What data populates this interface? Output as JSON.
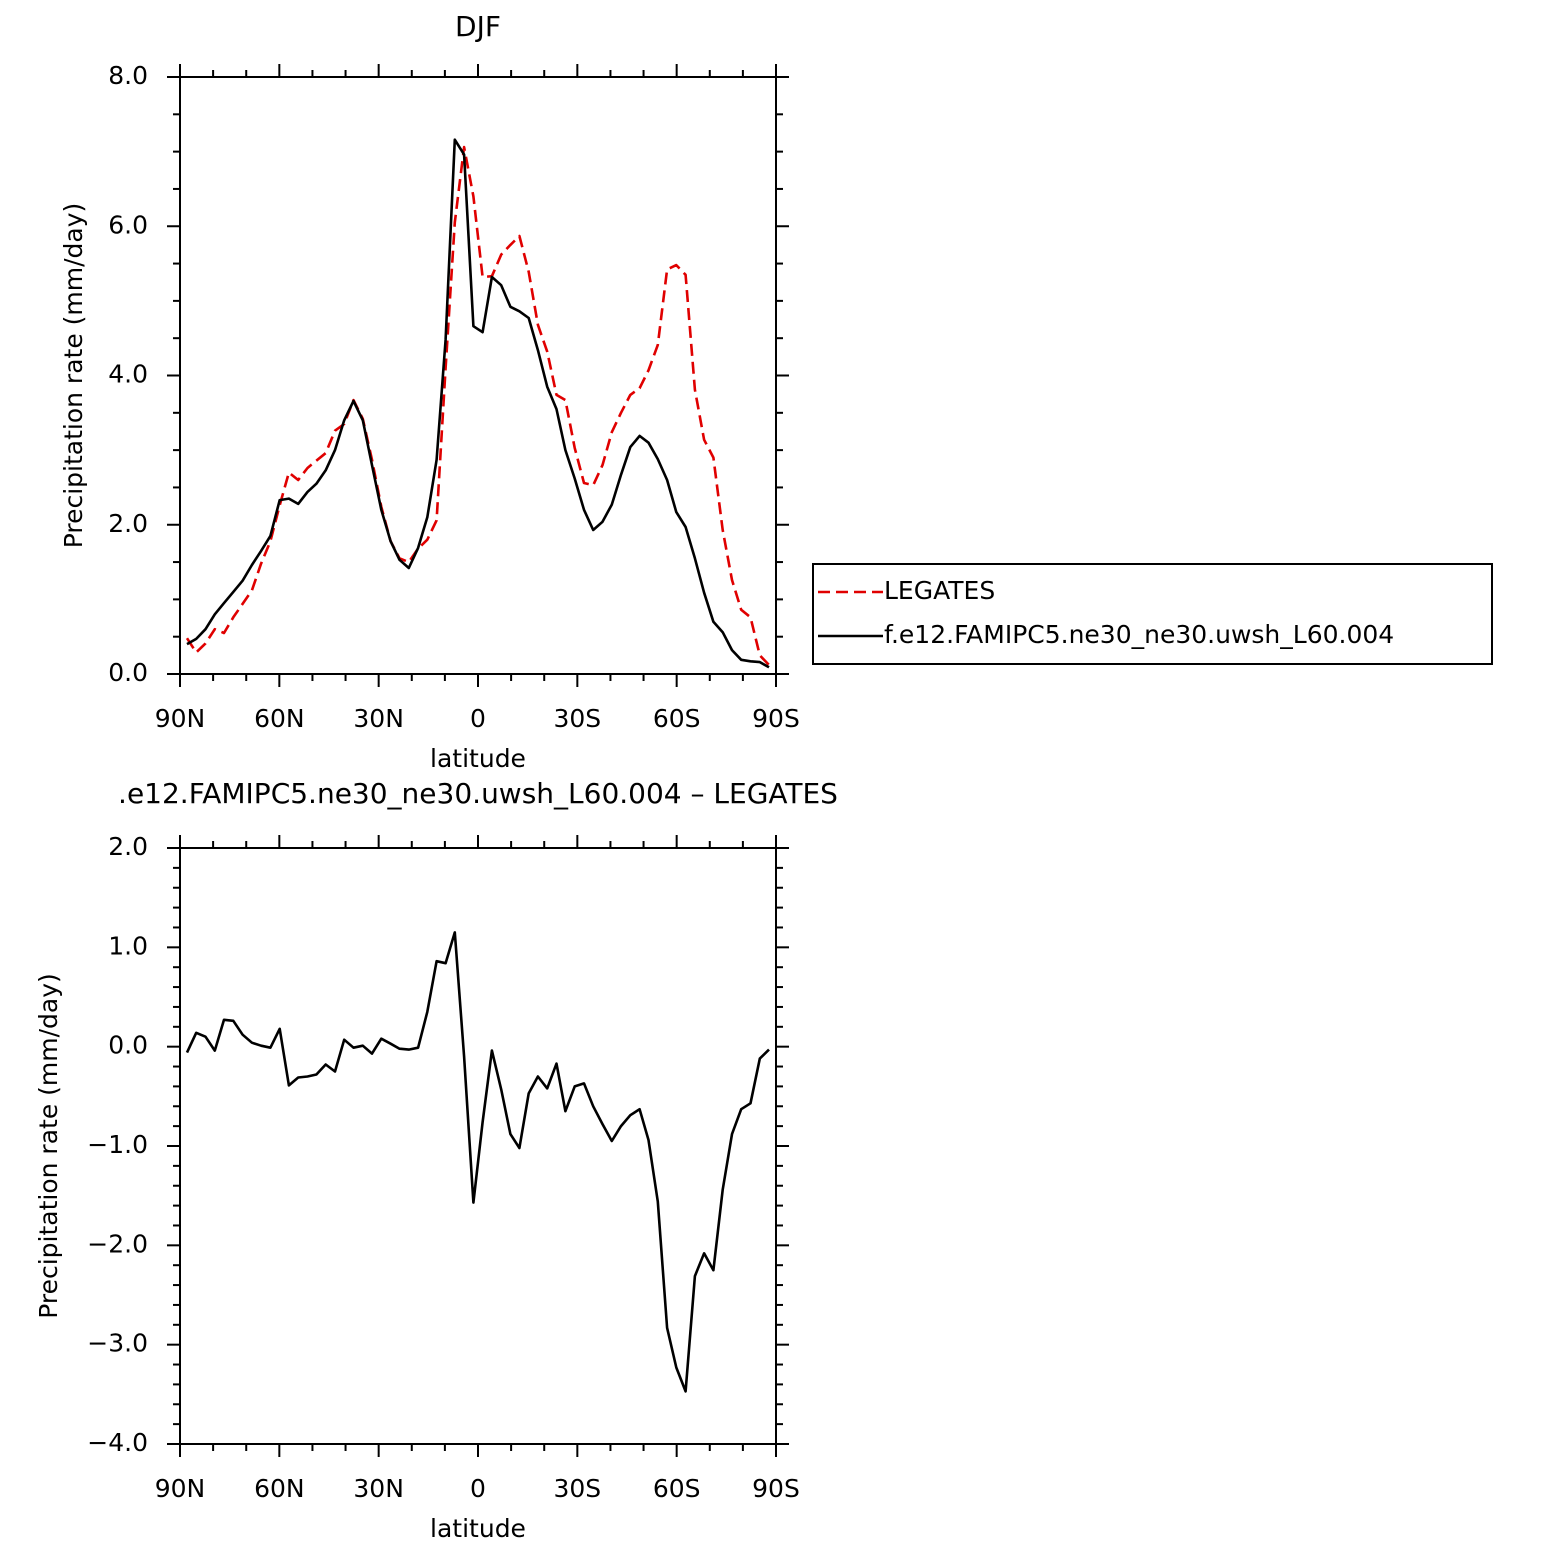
{
  "chart_data": [
    {
      "type": "line",
      "title": "DJF",
      "xlabel": "latitude",
      "ylabel": "Precipitation rate (mm/day)",
      "x": [
        87.9,
        85.1,
        82.3,
        79.5,
        76.7,
        73.9,
        71.1,
        68.3,
        65.5,
        62.7,
        59.9,
        57.1,
        54.3,
        51.5,
        48.8,
        46.0,
        43.2,
        40.4,
        37.6,
        34.8,
        32.0,
        29.2,
        26.4,
        23.7,
        20.9,
        18.1,
        15.3,
        12.5,
        9.8,
        7.0,
        4.2,
        1.4,
        -1.4,
        -4.2,
        -7.0,
        -9.8,
        -12.5,
        -15.3,
        -18.1,
        -20.9,
        -23.7,
        -26.4,
        -29.2,
        -32.0,
        -34.8,
        -37.6,
        -40.4,
        -43.2,
        -46.0,
        -48.8,
        -51.5,
        -54.3,
        -57.1,
        -59.9,
        -62.7,
        -65.5,
        -68.3,
        -71.1,
        -73.9,
        -76.7,
        -79.5,
        -82.3,
        -85.1,
        -87.9
      ],
      "series": [
        {
          "name": "LEGATES",
          "color": "#e00000",
          "dash": true,
          "values": [
            0.48,
            0.29,
            0.41,
            0.6,
            0.55,
            0.76,
            0.94,
            1.12,
            1.48,
            1.78,
            2.26,
            2.7,
            2.6,
            2.76,
            2.86,
            2.96,
            3.26,
            3.35,
            3.67,
            3.42,
            2.87,
            2.24,
            1.78,
            1.55,
            1.5,
            1.68,
            1.8,
            2.06,
            4.1,
            6.05,
            7.06,
            6.4,
            5.32,
            5.33,
            5.62,
            5.75,
            5.87,
            5.39,
            4.68,
            4.32,
            3.74,
            3.67,
            3.03,
            2.56,
            2.53,
            2.8,
            3.24,
            3.5,
            3.74,
            3.83,
            4.07,
            4.41,
            5.42,
            5.48,
            5.35,
            3.81,
            3.14,
            2.9,
            1.93,
            1.26,
            0.86,
            0.76,
            0.25,
            0.12
          ]
        },
        {
          "name": "f.e12.FAMIPC5.ne30_ne30.uwsh_L60.004",
          "color": "#000000",
          "dash": false,
          "values": [
            0.4,
            0.47,
            0.6,
            0.8,
            0.95,
            1.1,
            1.25,
            1.46,
            1.65,
            1.85,
            2.33,
            2.35,
            2.28,
            2.44,
            2.55,
            2.73,
            3.0,
            3.4,
            3.66,
            3.4,
            2.8,
            2.2,
            1.78,
            1.53,
            1.42,
            1.69,
            2.1,
            2.87,
            4.48,
            7.16,
            6.96,
            4.66,
            4.58,
            5.32,
            5.21,
            4.92,
            4.86,
            4.77,
            4.34,
            3.85,
            3.55,
            3.0,
            2.62,
            2.2,
            1.93,
            2.04,
            2.27,
            2.67,
            3.04,
            3.19,
            3.1,
            2.88,
            2.6,
            2.17,
            1.97,
            1.55,
            1.09,
            0.7,
            0.56,
            0.32,
            0.19,
            0.17,
            0.16,
            0.09
          ]
        }
      ],
      "xlim": [
        90,
        -90
      ],
      "xticks": [
        {
          "value": 90,
          "label": "90N"
        },
        {
          "value": 60,
          "label": "60N"
        },
        {
          "value": 30,
          "label": "30N"
        },
        0,
        {
          "value": -30,
          "label": "30S"
        },
        {
          "value": -60,
          "label": "60S"
        },
        {
          "value": -90,
          "label": "90S"
        }
      ],
      "xminorticks": [
        80,
        70,
        50,
        40,
        20,
        10,
        -10,
        -20,
        -40,
        -50,
        -70,
        -80
      ],
      "ylim": [
        0,
        8
      ],
      "yticks": [
        {
          "value": 0,
          "label": "0.0"
        },
        {
          "value": 2,
          "label": "2.0"
        },
        {
          "value": 4,
          "label": "4.0"
        },
        {
          "value": 6,
          "label": "6.0"
        },
        {
          "value": 8,
          "label": "8.0"
        }
      ],
      "yminorticks": [
        0.5,
        1,
        1.5,
        2.5,
        3,
        3.5,
        4.5,
        5,
        5.5,
        6.5,
        7,
        7.5
      ],
      "grid": false,
      "legend": "right"
    },
    {
      "type": "line",
      "title": ".e12.FAMIPC5.ne30_ne30.uwsh_L60.004 – LEGATES",
      "xlabel": "latitude",
      "ylabel": "Precipitation rate (mm/day)",
      "x": [
        87.9,
        85.1,
        82.3,
        79.5,
        76.7,
        73.9,
        71.1,
        68.3,
        65.5,
        62.7,
        59.9,
        57.1,
        54.3,
        51.5,
        48.8,
        46.0,
        43.2,
        40.4,
        37.6,
        34.8,
        32.0,
        29.2,
        26.4,
        23.7,
        20.9,
        18.1,
        15.3,
        12.5,
        9.8,
        7.0,
        4.2,
        1.4,
        -1.4,
        -4.2,
        -7.0,
        -9.8,
        -12.5,
        -15.3,
        -18.1,
        -20.9,
        -23.7,
        -26.4,
        -29.2,
        -32.0,
        -34.8,
        -37.6,
        -40.4,
        -43.2,
        -46.0,
        -48.8,
        -51.5,
        -54.3,
        -57.1,
        -59.9,
        -62.7,
        -65.5,
        -68.3,
        -71.1,
        -73.9,
        -76.7,
        -79.5,
        -82.3,
        -85.1,
        -87.9
      ],
      "series": [
        {
          "color": "#000000",
          "dash": false,
          "values": [
            -0.06,
            0.14,
            0.1,
            -0.04,
            0.27,
            0.26,
            0.12,
            0.04,
            0.01,
            -0.01,
            0.18,
            -0.39,
            -0.31,
            -0.3,
            -0.28,
            -0.18,
            -0.25,
            0.07,
            -0.01,
            0.01,
            -0.07,
            0.08,
            0.03,
            -0.02,
            -0.03,
            -0.01,
            0.35,
            0.86,
            0.84,
            1.15,
            -0.1,
            -1.57,
            -0.76,
            -0.04,
            -0.43,
            -0.88,
            -1.02,
            -0.47,
            -0.3,
            -0.42,
            -0.17,
            -0.65,
            -0.4,
            -0.37,
            -0.6,
            -0.78,
            -0.95,
            -0.8,
            -0.69,
            -0.63,
            -0.94,
            -1.56,
            -2.83,
            -3.23,
            -3.47,
            -2.31,
            -2.08,
            -2.25,
            -1.44,
            -0.88,
            -0.63,
            -0.57,
            -0.12,
            -0.03
          ]
        }
      ],
      "xlim": [
        90,
        -90
      ],
      "xticks": [
        {
          "value": 90,
          "label": "90N"
        },
        {
          "value": 60,
          "label": "60N"
        },
        {
          "value": 30,
          "label": "30N"
        },
        0,
        {
          "value": -30,
          "label": "30S"
        },
        {
          "value": -60,
          "label": "60S"
        },
        {
          "value": -90,
          "label": "90S"
        }
      ],
      "xminorticks": [
        80,
        70,
        50,
        40,
        20,
        10,
        -10,
        -20,
        -40,
        -50,
        -70,
        -80
      ],
      "ylim": [
        -4,
        2
      ],
      "yticks": [
        {
          "value": -4,
          "label": "−4.0"
        },
        {
          "value": -3,
          "label": "−3.0"
        },
        {
          "value": -2,
          "label": "−2.0"
        },
        {
          "value": -1,
          "label": "−1.0"
        },
        {
          "value": 0,
          "label": "0.0"
        },
        {
          "value": 1,
          "label": "1.0"
        },
        {
          "value": 2,
          "label": "2.0"
        }
      ],
      "yminorticks": [
        -3.8,
        -3.6,
        -3.4,
        -3.2,
        -2.8,
        -2.6,
        -2.4,
        -2.2,
        -1.8,
        -1.6,
        -1.4,
        -1.2,
        -0.8,
        -0.6,
        -0.4,
        -0.2,
        0.2,
        0.4,
        0.6,
        0.8,
        1.2,
        1.4,
        1.6,
        1.8
      ],
      "grid": false
    }
  ]
}
